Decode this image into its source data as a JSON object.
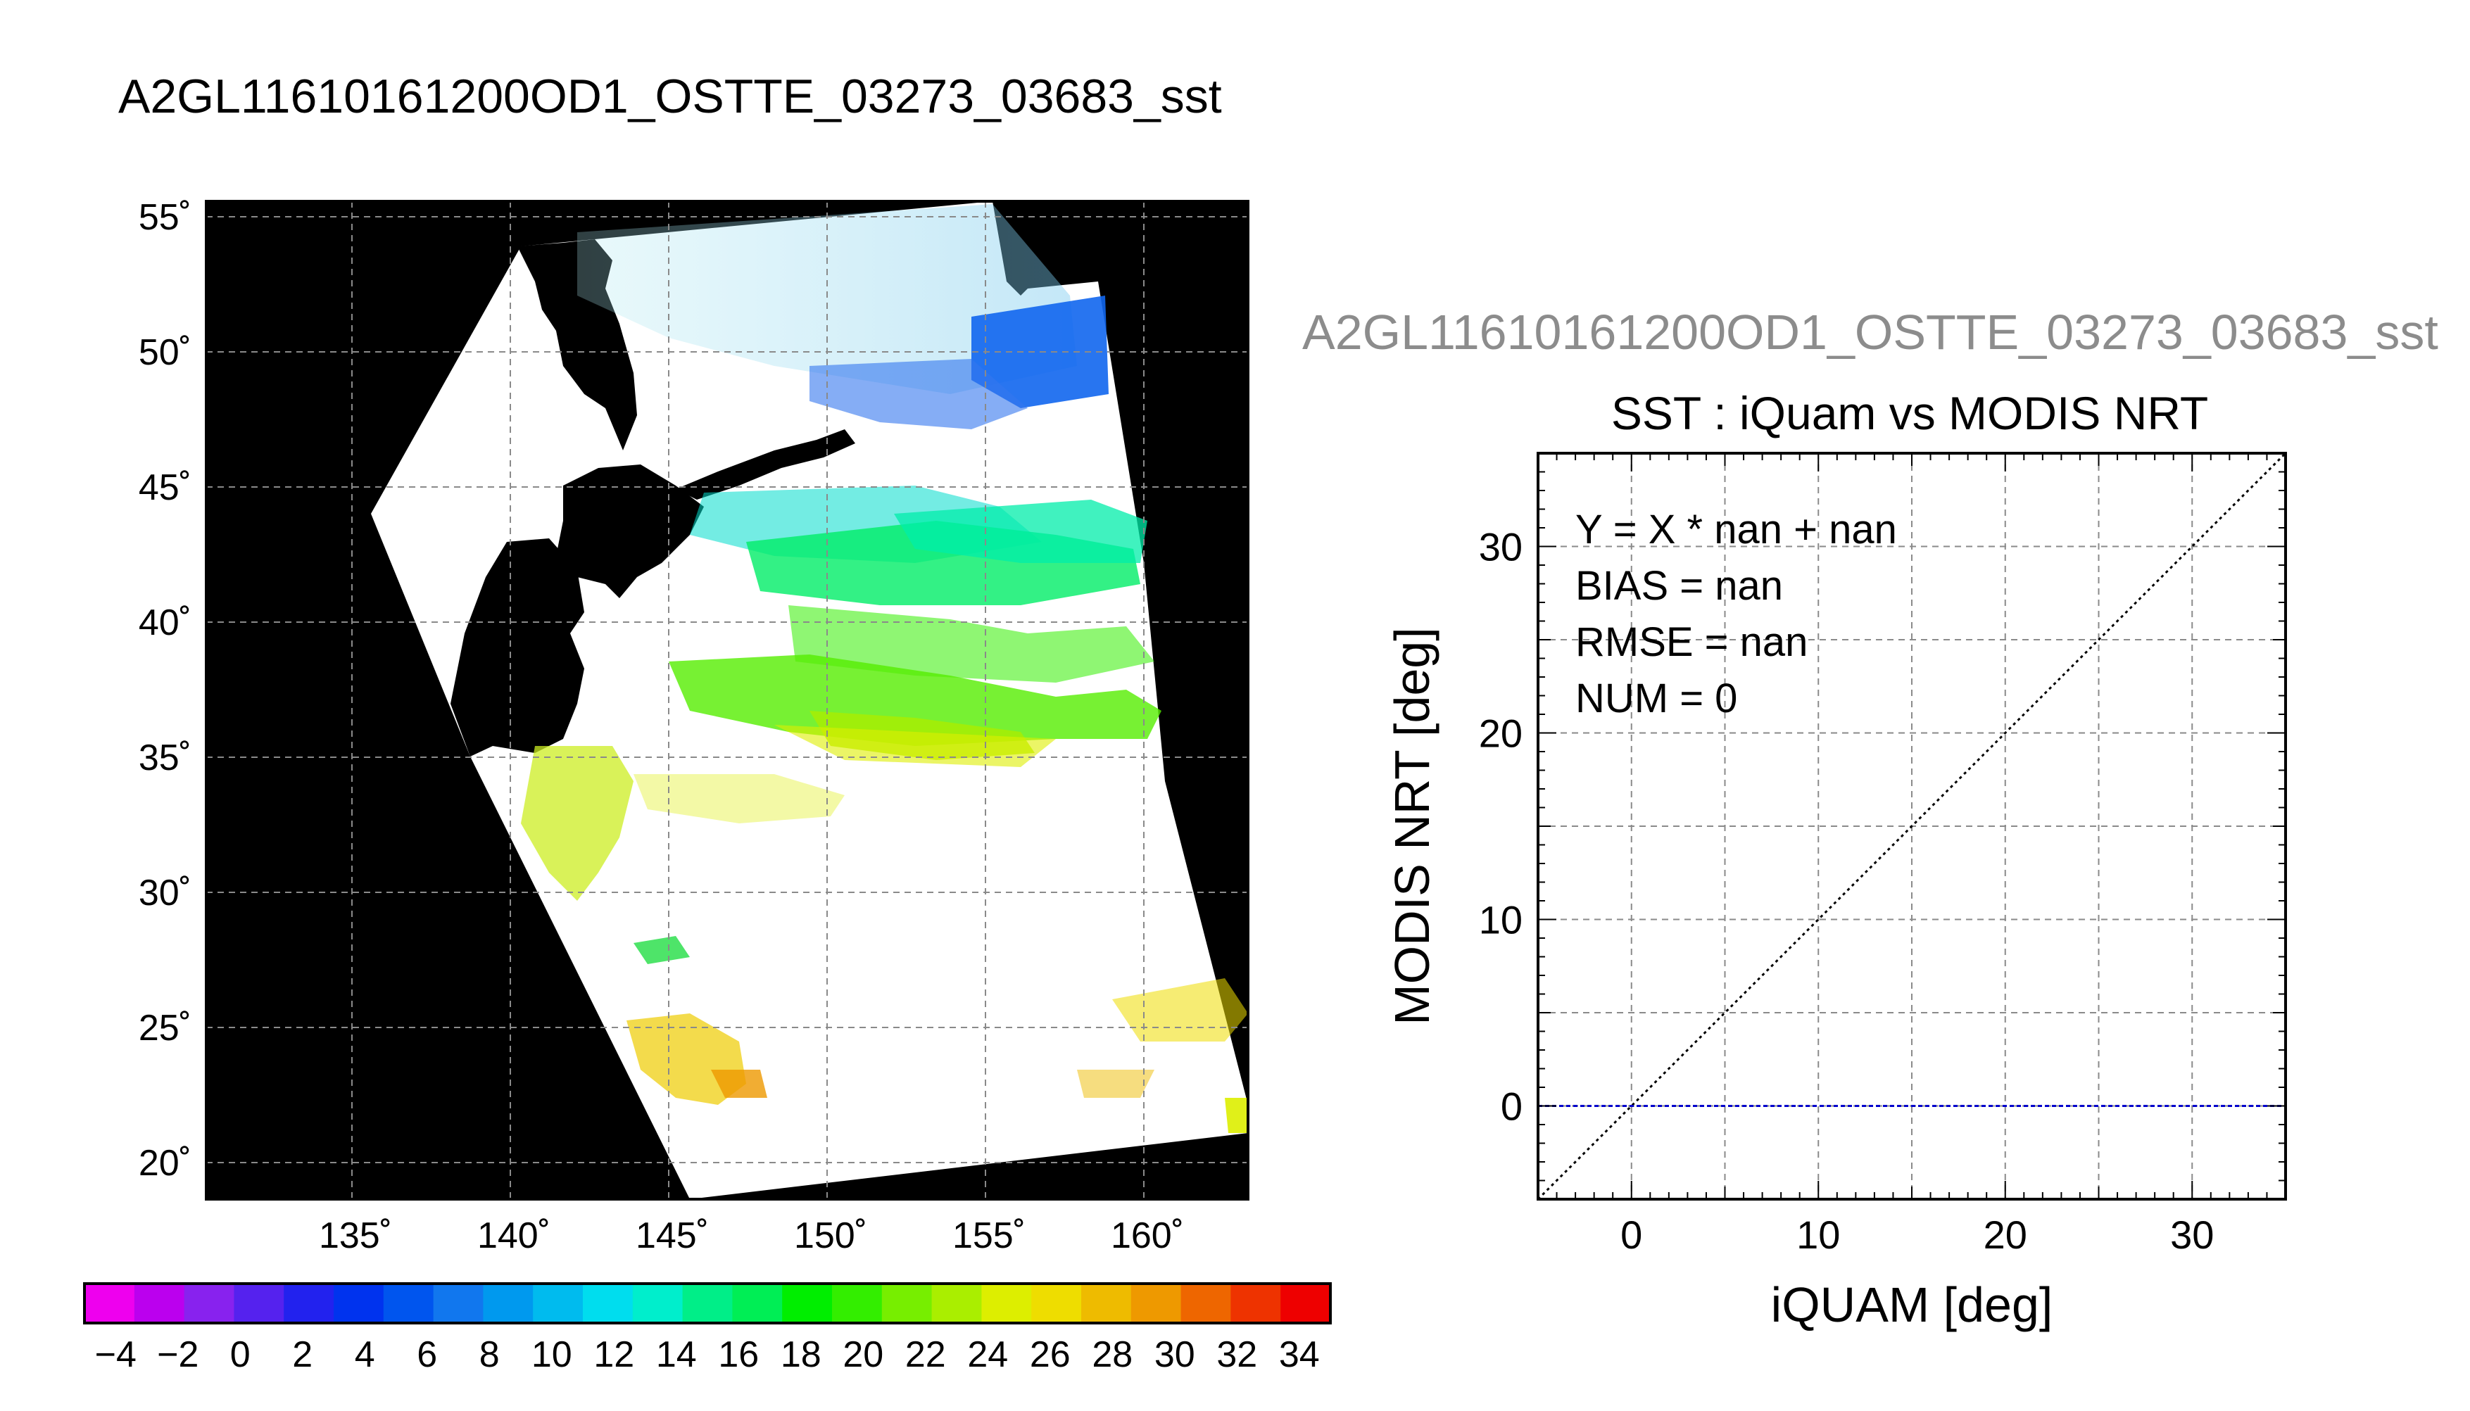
{
  "main_title": "A2GL11610161200OD1_OSTTE_03273_03683_sst",
  "map": {
    "lat_labels": [
      "55˚",
      "50˚",
      "45˚",
      "40˚",
      "35˚",
      "30˚",
      "25˚",
      "20˚"
    ],
    "lon_labels": [
      "135˚",
      "140˚",
      "145˚",
      "150˚",
      "155˚",
      "160˚"
    ]
  },
  "colorbar": {
    "tick_labels": [
      "−4",
      "−2",
      "0",
      "2",
      "4",
      "6",
      "8",
      "10",
      "12",
      "14",
      "16",
      "18",
      "20",
      "22",
      "24",
      "26",
      "28",
      "30",
      "32",
      "34"
    ],
    "colors": [
      "#ee00ee",
      "#bb00ee",
      "#8822ee",
      "#5522ee",
      "#2222ee",
      "#0033ee",
      "#0055ee",
      "#1177ee",
      "#0099ee",
      "#00bbee",
      "#00ddee",
      "#00eecc",
      "#00ee88",
      "#00ee55",
      "#00ee00",
      "#33ee00",
      "#77ee00",
      "#aaee00",
      "#ddee00",
      "#eedd00",
      "#eebb00",
      "#ee9900",
      "#ee6600",
      "#ee3300",
      "#ee0000"
    ]
  },
  "scatter_title_gray": "A2GL11610161200OD1_OSTTE_03273_03683_sst",
  "chart_data": {
    "type": "scatter",
    "title": "SST : iQuam vs MODIS NRT",
    "xlabel": "iQUAM [deg]",
    "ylabel": "MODIS NRT [deg]",
    "xlim": [
      -5,
      35
    ],
    "ylim": [
      -5,
      35
    ],
    "x_ticks": [
      0,
      10,
      20,
      30
    ],
    "y_ticks": [
      0,
      10,
      20,
      30
    ],
    "grid": true,
    "points": [],
    "reference_lines": [
      {
        "label": "y = x",
        "style": "dotted",
        "color": "#000000"
      },
      {
        "label": "fit",
        "style": "dashed",
        "color": "#0000cc",
        "y_value": 0
      }
    ],
    "stats": [
      "Y = X * nan + nan",
      "BIAS = nan",
      "RMSE = nan",
      "NUM = 0"
    ]
  }
}
